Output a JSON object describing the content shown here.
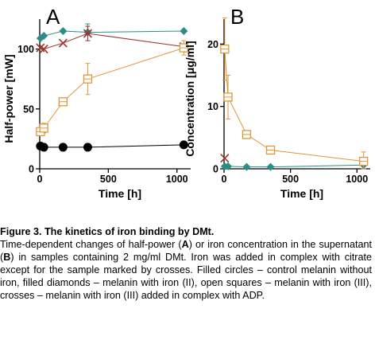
{
  "chart_data": [
    {
      "type": "line",
      "panel_label": "A",
      "xlabel": "Time [h]",
      "ylabel": "Half-power [mW]",
      "xlim": [
        0,
        1100
      ],
      "ylim": [
        0,
        125
      ],
      "xticks": [
        "0",
        "500",
        "1000"
      ],
      "yticks": [
        "0",
        "50",
        "100"
      ],
      "series": [
        {
          "marker": "circle",
          "color": "#000000",
          "x": [
            5,
            30,
            170,
            350,
            1050
          ],
          "y": [
            19,
            18,
            18,
            18,
            20
          ],
          "err": [
            0,
            0,
            0,
            0,
            0
          ]
        },
        {
          "marker": "diamond",
          "color": "#2a8e86",
          "x": [
            5,
            30,
            170,
            350,
            1050
          ],
          "y": [
            109,
            111,
            115,
            114,
            115
          ],
          "err": [
            0,
            0,
            0,
            7,
            0
          ]
        },
        {
          "marker": "cross",
          "color": "#9e3328",
          "x": [
            5,
            30,
            170,
            350,
            1050
          ],
          "y": [
            101,
            100,
            105,
            113,
            102
          ],
          "err": [
            0,
            0,
            0,
            6,
            0
          ]
        },
        {
          "marker": "square",
          "color": "#e0963a",
          "x": [
            5,
            30,
            170,
            350,
            1050
          ],
          "y": [
            31,
            34,
            56,
            75,
            101
          ],
          "err": [
            0,
            4,
            3,
            13,
            6
          ]
        }
      ]
    },
    {
      "type": "line",
      "panel_label": "B",
      "xlabel": "Time [h]",
      "ylabel": "Concentration [μg/ml]",
      "xlim": [
        0,
        1100
      ],
      "ylim": [
        0,
        24
      ],
      "xticks": [
        "0",
        "500",
        "1000"
      ],
      "yticks": [
        "0",
        "10",
        "20"
      ],
      "series": [
        {
          "marker": "diamond",
          "color": "#2a8e86",
          "x": [
            5,
            30,
            170,
            350,
            1050
          ],
          "y": [
            0.4,
            0.4,
            0.3,
            0.3,
            0.6
          ],
          "err": [
            0,
            0,
            0,
            0,
            0
          ]
        },
        {
          "marker": "cross",
          "color": "#9e3328",
          "x": [
            5
          ],
          "y": [
            1.7
          ],
          "err": [
            0
          ]
        },
        {
          "marker": "square",
          "color": "#e0963a",
          "x": [
            5,
            30,
            170,
            350,
            1050
          ],
          "y": [
            19.2,
            11.5,
            5.5,
            3.0,
            1.2
          ],
          "err": [
            5.0,
            3.5,
            0.6,
            0.3,
            1.5
          ]
        }
      ]
    }
  ],
  "caption": {
    "title": "Figure 3. The kinetics of iron binding by DMt.",
    "body_parts": [
      "Time-dependent changes of half-power (",
      "A",
      ") or iron concentration in the supernatant (",
      "B",
      ") in samples containing 2 mg/ml DMt. Iron was added in complex with citrate except for the sample marked by crosses. Filled circles – control melanin without iron, filled diamonds – melanin with iron (II), open squares – melanin with iron (III), crosses – melanin with iron (III) added in complex with ADP."
    ]
  }
}
